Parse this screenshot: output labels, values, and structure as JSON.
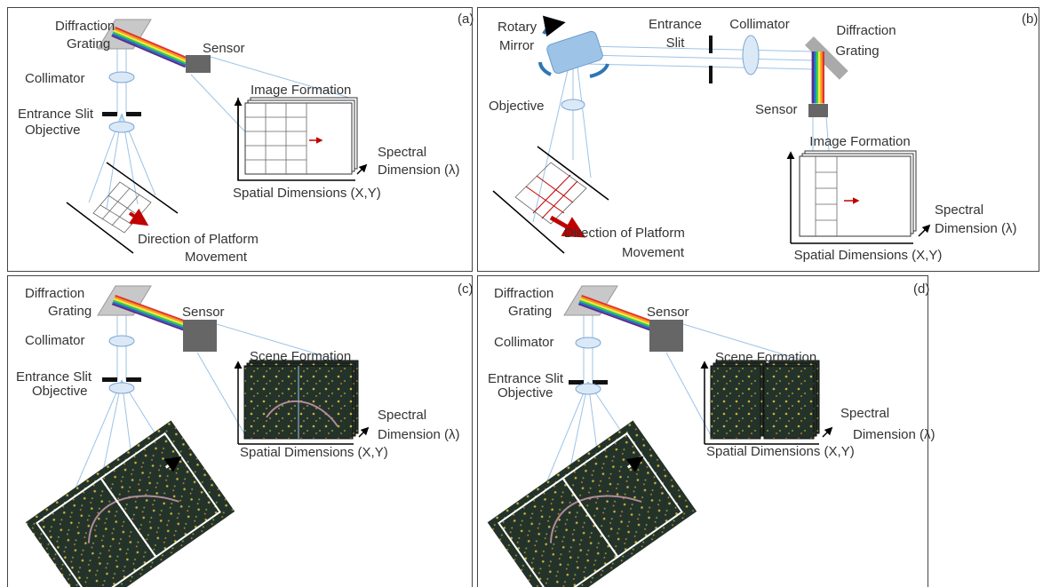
{
  "panels": [
    {
      "tag": "(a)",
      "grating": [
        "Diffraction",
        "Grating"
      ],
      "sensor": "Sensor",
      "collimator": "Collimator",
      "slit": "Entrance Slit",
      "objective": "Objective",
      "formation": "Image Formation",
      "spectral": [
        "Spectral",
        "Dimension (λ)"
      ],
      "spatial": "Spatial Dimensions (X,Y)",
      "movement": [
        "Direction of Platform",
        "Movement"
      ]
    },
    {
      "tag": "(b)",
      "mirror": [
        "Rotary",
        "Mirror"
      ],
      "slit": [
        "Entrance",
        "Slit"
      ],
      "collimator": "Collimator",
      "grating": [
        "Diffraction",
        "Grating"
      ],
      "sensor": "Sensor",
      "objective": "Objective",
      "formation": "Image Formation",
      "spectral": [
        "Spectral",
        "Dimension (λ)"
      ],
      "spatial": "Spatial Dimensions (X,Y)",
      "movement": [
        "Direction of Platform",
        "Movement"
      ]
    },
    {
      "tag": "(c)",
      "grating": [
        "Diffraction",
        "Grating"
      ],
      "sensor": "Sensor",
      "collimator": "Collimator",
      "slit": "Entrance Slit",
      "objective": "Objective",
      "formation": "Scene Formation",
      "spectral": [
        "Spectral",
        "Dimension (λ)"
      ],
      "spatial": "Spatial Dimensions (X,Y)"
    },
    {
      "tag": "(d)",
      "grating": [
        "Diffraction",
        "Grating"
      ],
      "sensor": "Sensor",
      "collimator": "Collimator",
      "slit": "Entrance Slit",
      "objective": "Objective",
      "formation": "Scene Formation",
      "spectral": [
        "Spectral",
        "Dimension (λ)"
      ],
      "spatial": "Spatial Dimensions (X,Y)"
    }
  ]
}
